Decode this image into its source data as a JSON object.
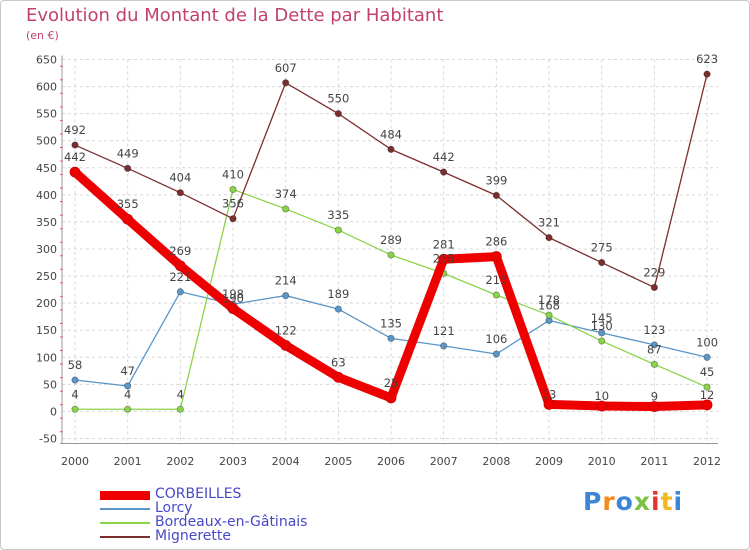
{
  "chart_data": {
    "type": "line",
    "title": "Evolution du Montant de la Dette par Habitant",
    "subtitle": "(en €)",
    "xlabel": "",
    "ylabel": "",
    "categories": [
      "2000",
      "2001",
      "2002",
      "2003",
      "2004",
      "2005",
      "2006",
      "2007",
      "2008",
      "2009",
      "2010",
      "2011",
      "2012"
    ],
    "ylim": [
      -50,
      650
    ],
    "yticks": [
      -50,
      0,
      50,
      100,
      150,
      200,
      250,
      300,
      350,
      400,
      450,
      500,
      550,
      600,
      650
    ],
    "ytick_labels": [
      "-50",
      "0",
      "50",
      "100",
      "150",
      "200",
      "250",
      "300",
      "350",
      "400",
      "450",
      "500",
      "550",
      "600",
      "650"
    ],
    "grid": true,
    "legend_position": "bottom-left",
    "series": [
      {
        "name": "CORBEILLES",
        "color": "#ee0000",
        "values": [
          442,
          355,
          269,
          190,
          122,
          63,
          25,
          281,
          286,
          13,
          10,
          9,
          12
        ],
        "labels": [
          "442",
          "355",
          "269",
          "190",
          "122",
          "63",
          "25",
          "281",
          "286",
          "13",
          "10",
          "9",
          "12"
        ]
      },
      {
        "name": "Lorcy",
        "color": "#5a96c8",
        "values": [
          58,
          47,
          221,
          198,
          214,
          189,
          135,
          121,
          106,
          168,
          145,
          123,
          100
        ],
        "labels": [
          "58",
          "47",
          "221",
          "198",
          "214",
          "189",
          "135",
          "121",
          "106",
          "168",
          "145",
          "123",
          "100"
        ]
      },
      {
        "name": "Bordeaux-en-Gâtinais",
        "color": "#8ad44a",
        "values": [
          4,
          4,
          4,
          410,
          374,
          335,
          289,
          255,
          215,
          178,
          130,
          87,
          45
        ],
        "labels": [
          "4",
          "4",
          "4",
          "410",
          "374",
          "335",
          "289",
          "255",
          "215",
          "178",
          "130",
          "87",
          "45"
        ]
      },
      {
        "name": "Mignerette",
        "color": "#7a2e2e",
        "values": [
          492,
          449,
          404,
          356,
          607,
          550,
          484,
          442,
          399,
          321,
          275,
          229,
          623
        ],
        "labels": [
          "492",
          "449",
          "404",
          "356",
          "607",
          "550",
          "484",
          "442",
          "399",
          "321",
          "275",
          "229",
          "623"
        ]
      }
    ]
  },
  "legend_text_color": "#4848c8",
  "logo": {
    "letters": [
      "P",
      "r",
      "o",
      "x",
      "i",
      "t",
      "i"
    ],
    "colors": [
      "#3b86d6",
      "#f28a1e",
      "#3b86d6",
      "#7cc242",
      "#e8332a",
      "#f2b81e",
      "#3b86d6"
    ]
  }
}
